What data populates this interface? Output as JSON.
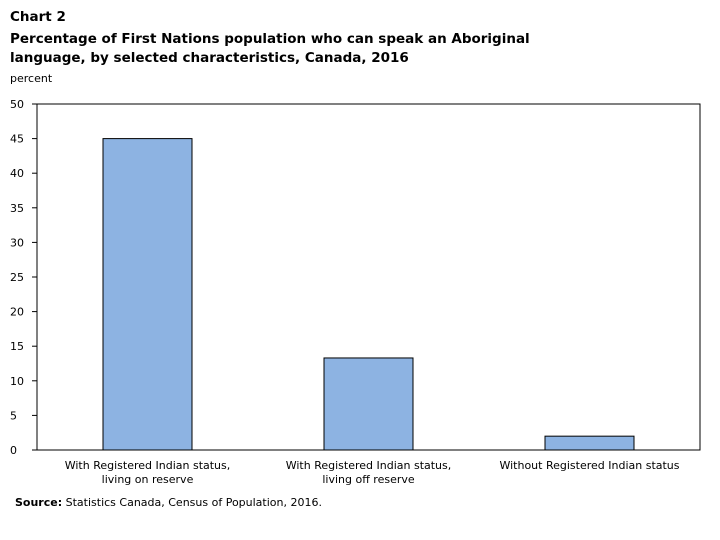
{
  "header": {
    "chart_label": "Chart 2",
    "title": "Percentage of First Nations population who can speak an Aboriginal language, by selected characteristics, Canada, 2016",
    "unit": "percent"
  },
  "chart_data": {
    "type": "bar",
    "title": "Percentage of First Nations population who can speak an Aboriginal language, by selected characteristics, Canada, 2016",
    "xlabel": "",
    "ylabel": "percent",
    "ylim": [
      0,
      50
    ],
    "yticks": [
      0,
      5,
      10,
      15,
      20,
      25,
      30,
      35,
      40,
      45,
      50
    ],
    "categories": [
      [
        "With Registered Indian status,",
        "living on reserve"
      ],
      [
        "With Registered Indian status,",
        "living off reserve"
      ],
      [
        "Without Registered Indian status"
      ]
    ],
    "values": [
      45,
      13.3,
      2
    ],
    "bar_color": "#8db3e2",
    "grid": false,
    "legend": "none"
  },
  "footer": {
    "source_label": "Source:",
    "source_text": "Statistics Canada, Census of Population, 2016."
  }
}
